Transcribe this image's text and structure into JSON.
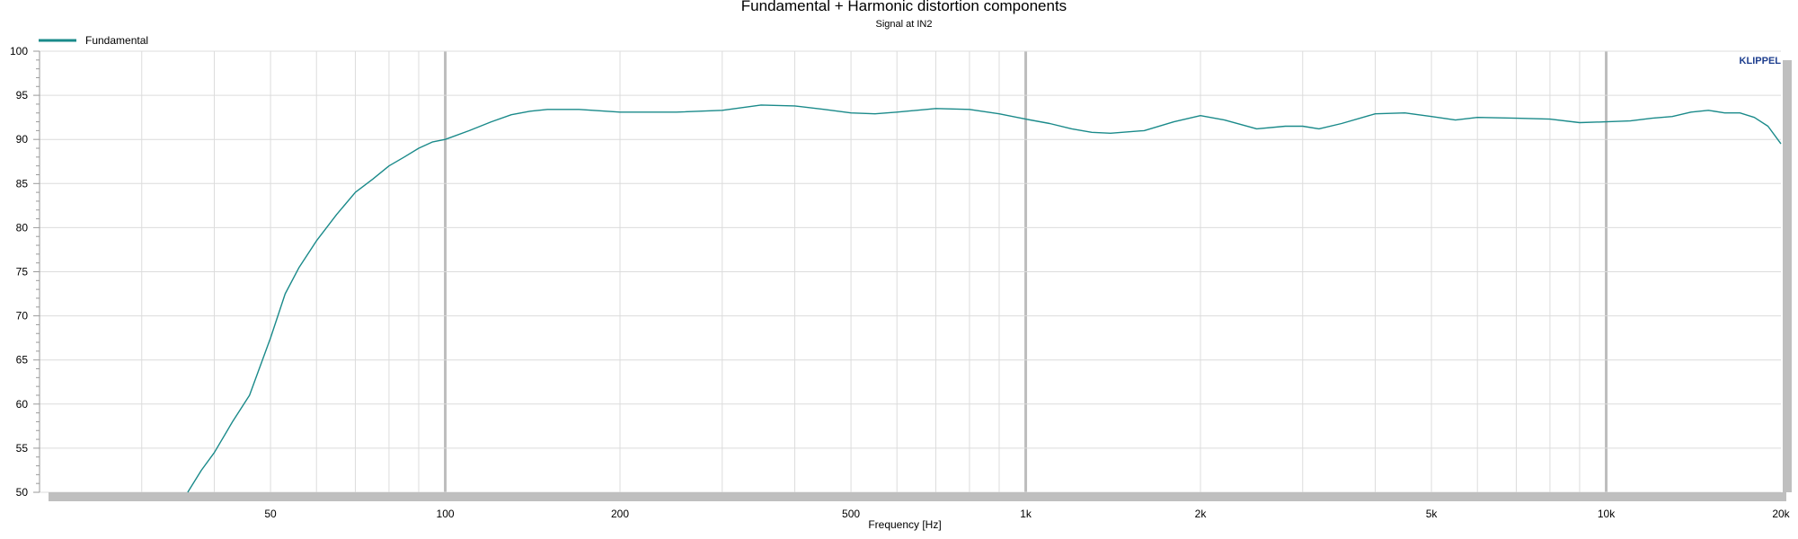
{
  "chart_data": {
    "type": "line",
    "title": "Fundamental + Harmonic distortion components",
    "subtitle": "Signal at IN2",
    "xlabel": "Frequency [Hz]",
    "ylabel": "",
    "xscale": "log",
    "xlim": [
      20,
      20000
    ],
    "ylim": [
      50,
      100
    ],
    "grid": true,
    "legend_position": "top-left",
    "brand": "KLIPPEL",
    "xticks": [
      {
        "value": 50,
        "label": "50"
      },
      {
        "value": 100,
        "label": "100"
      },
      {
        "value": 200,
        "label": "200"
      },
      {
        "value": 500,
        "label": "500"
      },
      {
        "value": 1000,
        "label": "1k"
      },
      {
        "value": 2000,
        "label": "2k"
      },
      {
        "value": 5000,
        "label": "5k"
      },
      {
        "value": 10000,
        "label": "10k"
      },
      {
        "value": 20000,
        "label": "20k"
      }
    ],
    "yticks": [
      50,
      55,
      60,
      65,
      70,
      75,
      80,
      85,
      90,
      95,
      100
    ],
    "series": [
      {
        "name": "Fundamental",
        "color": "#1a8a8a",
        "x": [
          36,
          38,
          40,
          43,
          46,
          50,
          53,
          56,
          60,
          65,
          70,
          75,
          80,
          85,
          90,
          95,
          100,
          110,
          120,
          130,
          140,
          150,
          170,
          200,
          250,
          300,
          350,
          400,
          450,
          500,
          550,
          600,
          700,
          800,
          900,
          1000,
          1100,
          1200,
          1300,
          1400,
          1600,
          1800,
          2000,
          2200,
          2500,
          2800,
          3000,
          3200,
          3500,
          4000,
          4500,
          5000,
          5500,
          6000,
          7000,
          8000,
          9000,
          10000,
          11000,
          12000,
          13000,
          14000,
          15000,
          16000,
          17000,
          18000,
          19000,
          20000
        ],
        "y": [
          50,
          52.5,
          54.5,
          58,
          61,
          67.5,
          72.5,
          75.5,
          78.5,
          81.5,
          84,
          85.5,
          87,
          88,
          89,
          89.7,
          90,
          91,
          92,
          92.8,
          93.2,
          93.4,
          93.4,
          93.1,
          93.1,
          93.3,
          93.9,
          93.8,
          93.4,
          93.0,
          92.9,
          93.1,
          93.5,
          93.4,
          92.9,
          92.3,
          91.8,
          91.2,
          90.8,
          90.7,
          91.0,
          92.0,
          92.7,
          92.2,
          91.2,
          91.5,
          91.5,
          91.2,
          91.8,
          92.9,
          93.0,
          92.6,
          92.2,
          92.5,
          92.4,
          92.3,
          91.9,
          92.0,
          92.1,
          92.4,
          92.6,
          93.1,
          93.3,
          93.0,
          93.0,
          92.5,
          91.5,
          89.5
        ]
      }
    ]
  }
}
